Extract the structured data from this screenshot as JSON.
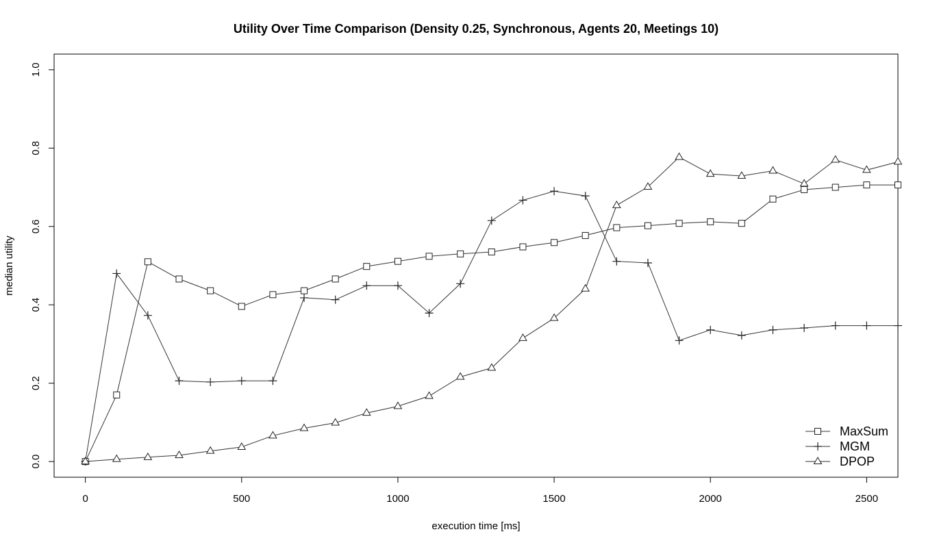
{
  "chart_data": {
    "type": "line",
    "title": "Utility Over Time Comparison (Density 0.25, Synchronous, Agents 20, Meetings 10)",
    "xlabel": "execution time [ms]",
    "ylabel": "median utility",
    "xlim": [
      -100,
      2600
    ],
    "ylim": [
      -0.04,
      1.04
    ],
    "x_ticks": [
      0,
      500,
      1000,
      1500,
      2000,
      2500
    ],
    "y_ticks": [
      0.0,
      0.2,
      0.4,
      0.6,
      0.8,
      1.0
    ],
    "x_tick_labels": [
      "0",
      "500",
      "1000",
      "1500",
      "2000",
      "2500"
    ],
    "y_tick_labels": [
      "0.0",
      "0.2",
      "0.4",
      "0.6",
      "0.8",
      "1.0"
    ],
    "grid": false,
    "legend_position": "bottom-right",
    "x": [
      0,
      100,
      200,
      300,
      400,
      500,
      600,
      700,
      800,
      900,
      1000,
      1100,
      1200,
      1300,
      1400,
      1500,
      1600,
      1700,
      1800,
      1900,
      2000,
      2100,
      2200,
      2300,
      2400,
      2500,
      2600
    ],
    "series": [
      {
        "name": "MaxSum",
        "marker": "square",
        "values": [
          0.0,
          0.17,
          0.51,
          0.466,
          0.436,
          0.396,
          0.426,
          0.436,
          0.466,
          0.498,
          0.511,
          0.524,
          0.53,
          0.535,
          0.548,
          0.559,
          0.577,
          0.597,
          0.602,
          0.608,
          0.612,
          0.608,
          0.67,
          0.694,
          0.7,
          0.706,
          0.706
        ]
      },
      {
        "name": "MGM",
        "marker": "plus",
        "values": [
          0.0,
          0.48,
          0.373,
          0.206,
          0.203,
          0.206,
          0.206,
          0.418,
          0.413,
          0.449,
          0.449,
          0.379,
          0.454,
          0.615,
          0.667,
          0.69,
          0.678,
          0.511,
          0.507,
          0.309,
          0.336,
          0.322,
          0.336,
          0.341,
          0.347,
          0.347,
          0.347
        ]
      },
      {
        "name": "DPOP",
        "marker": "triangle",
        "values": [
          0.0,
          0.006,
          0.011,
          0.016,
          0.027,
          0.037,
          0.066,
          0.085,
          0.099,
          0.124,
          0.141,
          0.167,
          0.216,
          0.239,
          0.315,
          0.366,
          0.441,
          0.654,
          0.701,
          0.777,
          0.734,
          0.729,
          0.742,
          0.709,
          0.77,
          0.744,
          0.765
        ]
      }
    ]
  }
}
